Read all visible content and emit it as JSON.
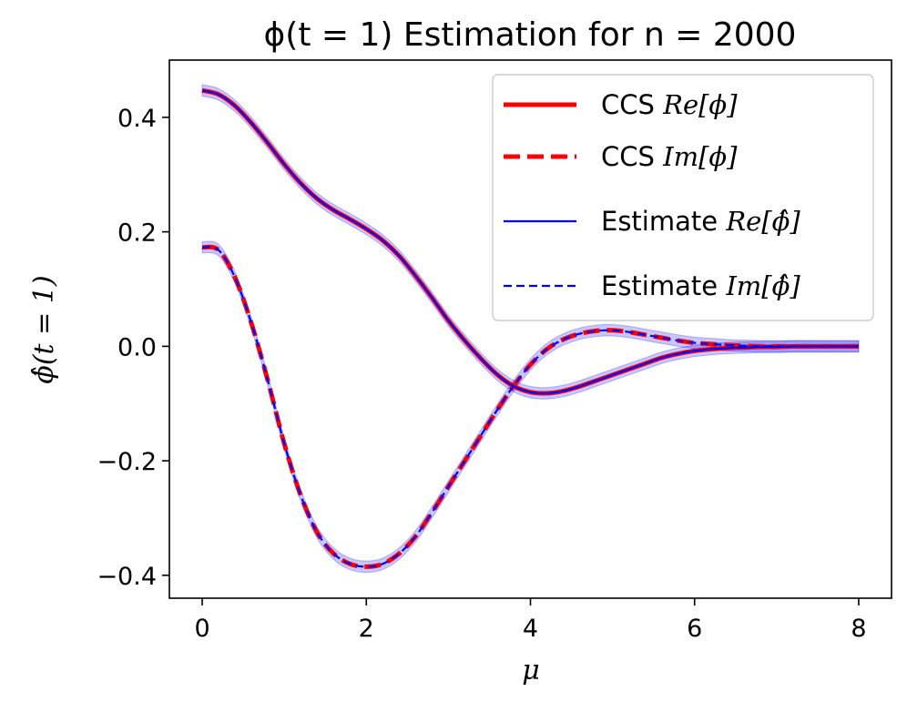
{
  "chart_data": {
    "type": "line",
    "title": "ϕ(t = 1) Estimation for n = 2000",
    "xlabel": "μ",
    "ylabel": "ϕ̂(t = 1)",
    "xlim": [
      -0.4,
      8.4
    ],
    "ylim": [
      -0.44,
      0.5
    ],
    "xticks": [
      0,
      2,
      4,
      6,
      8
    ],
    "xtick_labels": [
      "0",
      "2",
      "4",
      "6",
      "8"
    ],
    "yticks": [
      -0.4,
      -0.2,
      0.0,
      0.2,
      0.4
    ],
    "ytick_labels": [
      "−0.4",
      "−0.2",
      "0.0",
      "0.2",
      "0.4"
    ],
    "grid": false,
    "legend_position": "upper right",
    "x": [
      0.0,
      0.2,
      0.4,
      0.6,
      0.8,
      1.0,
      1.2,
      1.4,
      1.6,
      1.8,
      2.0,
      2.2,
      2.4,
      2.6,
      2.8,
      3.0,
      3.2,
      3.4,
      3.6,
      3.8,
      4.0,
      4.2,
      4.4,
      4.6,
      4.8,
      5.0,
      5.2,
      5.4,
      5.6,
      5.8,
      6.0,
      6.2,
      6.4,
      6.6,
      6.8,
      7.0,
      7.2,
      7.4,
      7.6,
      7.8,
      8.0
    ],
    "series": [
      {
        "name": "CCS Re[ϕ]",
        "legend_label": "CCS ",
        "legend_math": "Re[ϕ]",
        "color": "#ff0000",
        "style": "solid",
        "values": [
          0.447,
          0.44,
          0.42,
          0.39,
          0.355,
          0.318,
          0.285,
          0.258,
          0.238,
          0.222,
          0.205,
          0.185,
          0.158,
          0.123,
          0.085,
          0.045,
          0.01,
          -0.022,
          -0.05,
          -0.07,
          -0.08,
          -0.082,
          -0.078,
          -0.07,
          -0.06,
          -0.05,
          -0.04,
          -0.03,
          -0.02,
          -0.013,
          -0.008,
          -0.005,
          -0.003,
          -0.002,
          -0.001,
          -0.001,
          0.0,
          0.0,
          0.0,
          0.0,
          0.0
        ]
      },
      {
        "name": "CCS Im[ϕ]",
        "legend_label": "CCS ",
        "legend_math": "Im[ϕ]",
        "color": "#ff0000",
        "style": "dashed",
        "values": [
          0.173,
          0.168,
          0.12,
          0.04,
          -0.06,
          -0.17,
          -0.26,
          -0.325,
          -0.362,
          -0.38,
          -0.385,
          -0.38,
          -0.362,
          -0.332,
          -0.29,
          -0.245,
          -0.2,
          -0.155,
          -0.11,
          -0.068,
          -0.032,
          -0.005,
          0.012,
          0.022,
          0.027,
          0.028,
          0.025,
          0.02,
          0.015,
          0.01,
          0.006,
          0.004,
          0.002,
          0.001,
          0.0,
          0.0,
          0.0,
          0.0,
          0.0,
          0.0,
          0.0
        ]
      },
      {
        "name": "Estimate Re[ϕ̂]",
        "legend_label": "Estimate ",
        "legend_math": "Re[ϕ̂]",
        "color": "#0000ff",
        "style": "solid",
        "values": [
          0.447,
          0.44,
          0.42,
          0.39,
          0.355,
          0.318,
          0.285,
          0.258,
          0.238,
          0.222,
          0.205,
          0.185,
          0.158,
          0.123,
          0.085,
          0.045,
          0.01,
          -0.022,
          -0.05,
          -0.07,
          -0.08,
          -0.082,
          -0.078,
          -0.07,
          -0.06,
          -0.05,
          -0.04,
          -0.03,
          -0.02,
          -0.013,
          -0.008,
          -0.005,
          -0.003,
          -0.002,
          -0.001,
          -0.001,
          0.0,
          0.0,
          0.0,
          0.0,
          0.0
        ]
      },
      {
        "name": "Estimate Im[ϕ̂]",
        "legend_label": "Estimate ",
        "legend_math": "Im[ϕ̂]",
        "color": "#0000ff",
        "style": "dashed",
        "values": [
          0.173,
          0.168,
          0.12,
          0.04,
          -0.06,
          -0.17,
          -0.26,
          -0.325,
          -0.362,
          -0.38,
          -0.385,
          -0.38,
          -0.362,
          -0.332,
          -0.29,
          -0.245,
          -0.2,
          -0.155,
          -0.11,
          -0.068,
          -0.032,
          -0.005,
          0.012,
          0.022,
          0.027,
          0.028,
          0.025,
          0.02,
          0.015,
          0.01,
          0.006,
          0.004,
          0.002,
          0.001,
          0.0,
          0.0,
          0.0,
          0.0,
          0.0,
          0.0,
          0.0
        ]
      }
    ],
    "confidence_band": {
      "color": "#0000ff",
      "opacity": 0.22,
      "half_width": 0.01
    }
  }
}
